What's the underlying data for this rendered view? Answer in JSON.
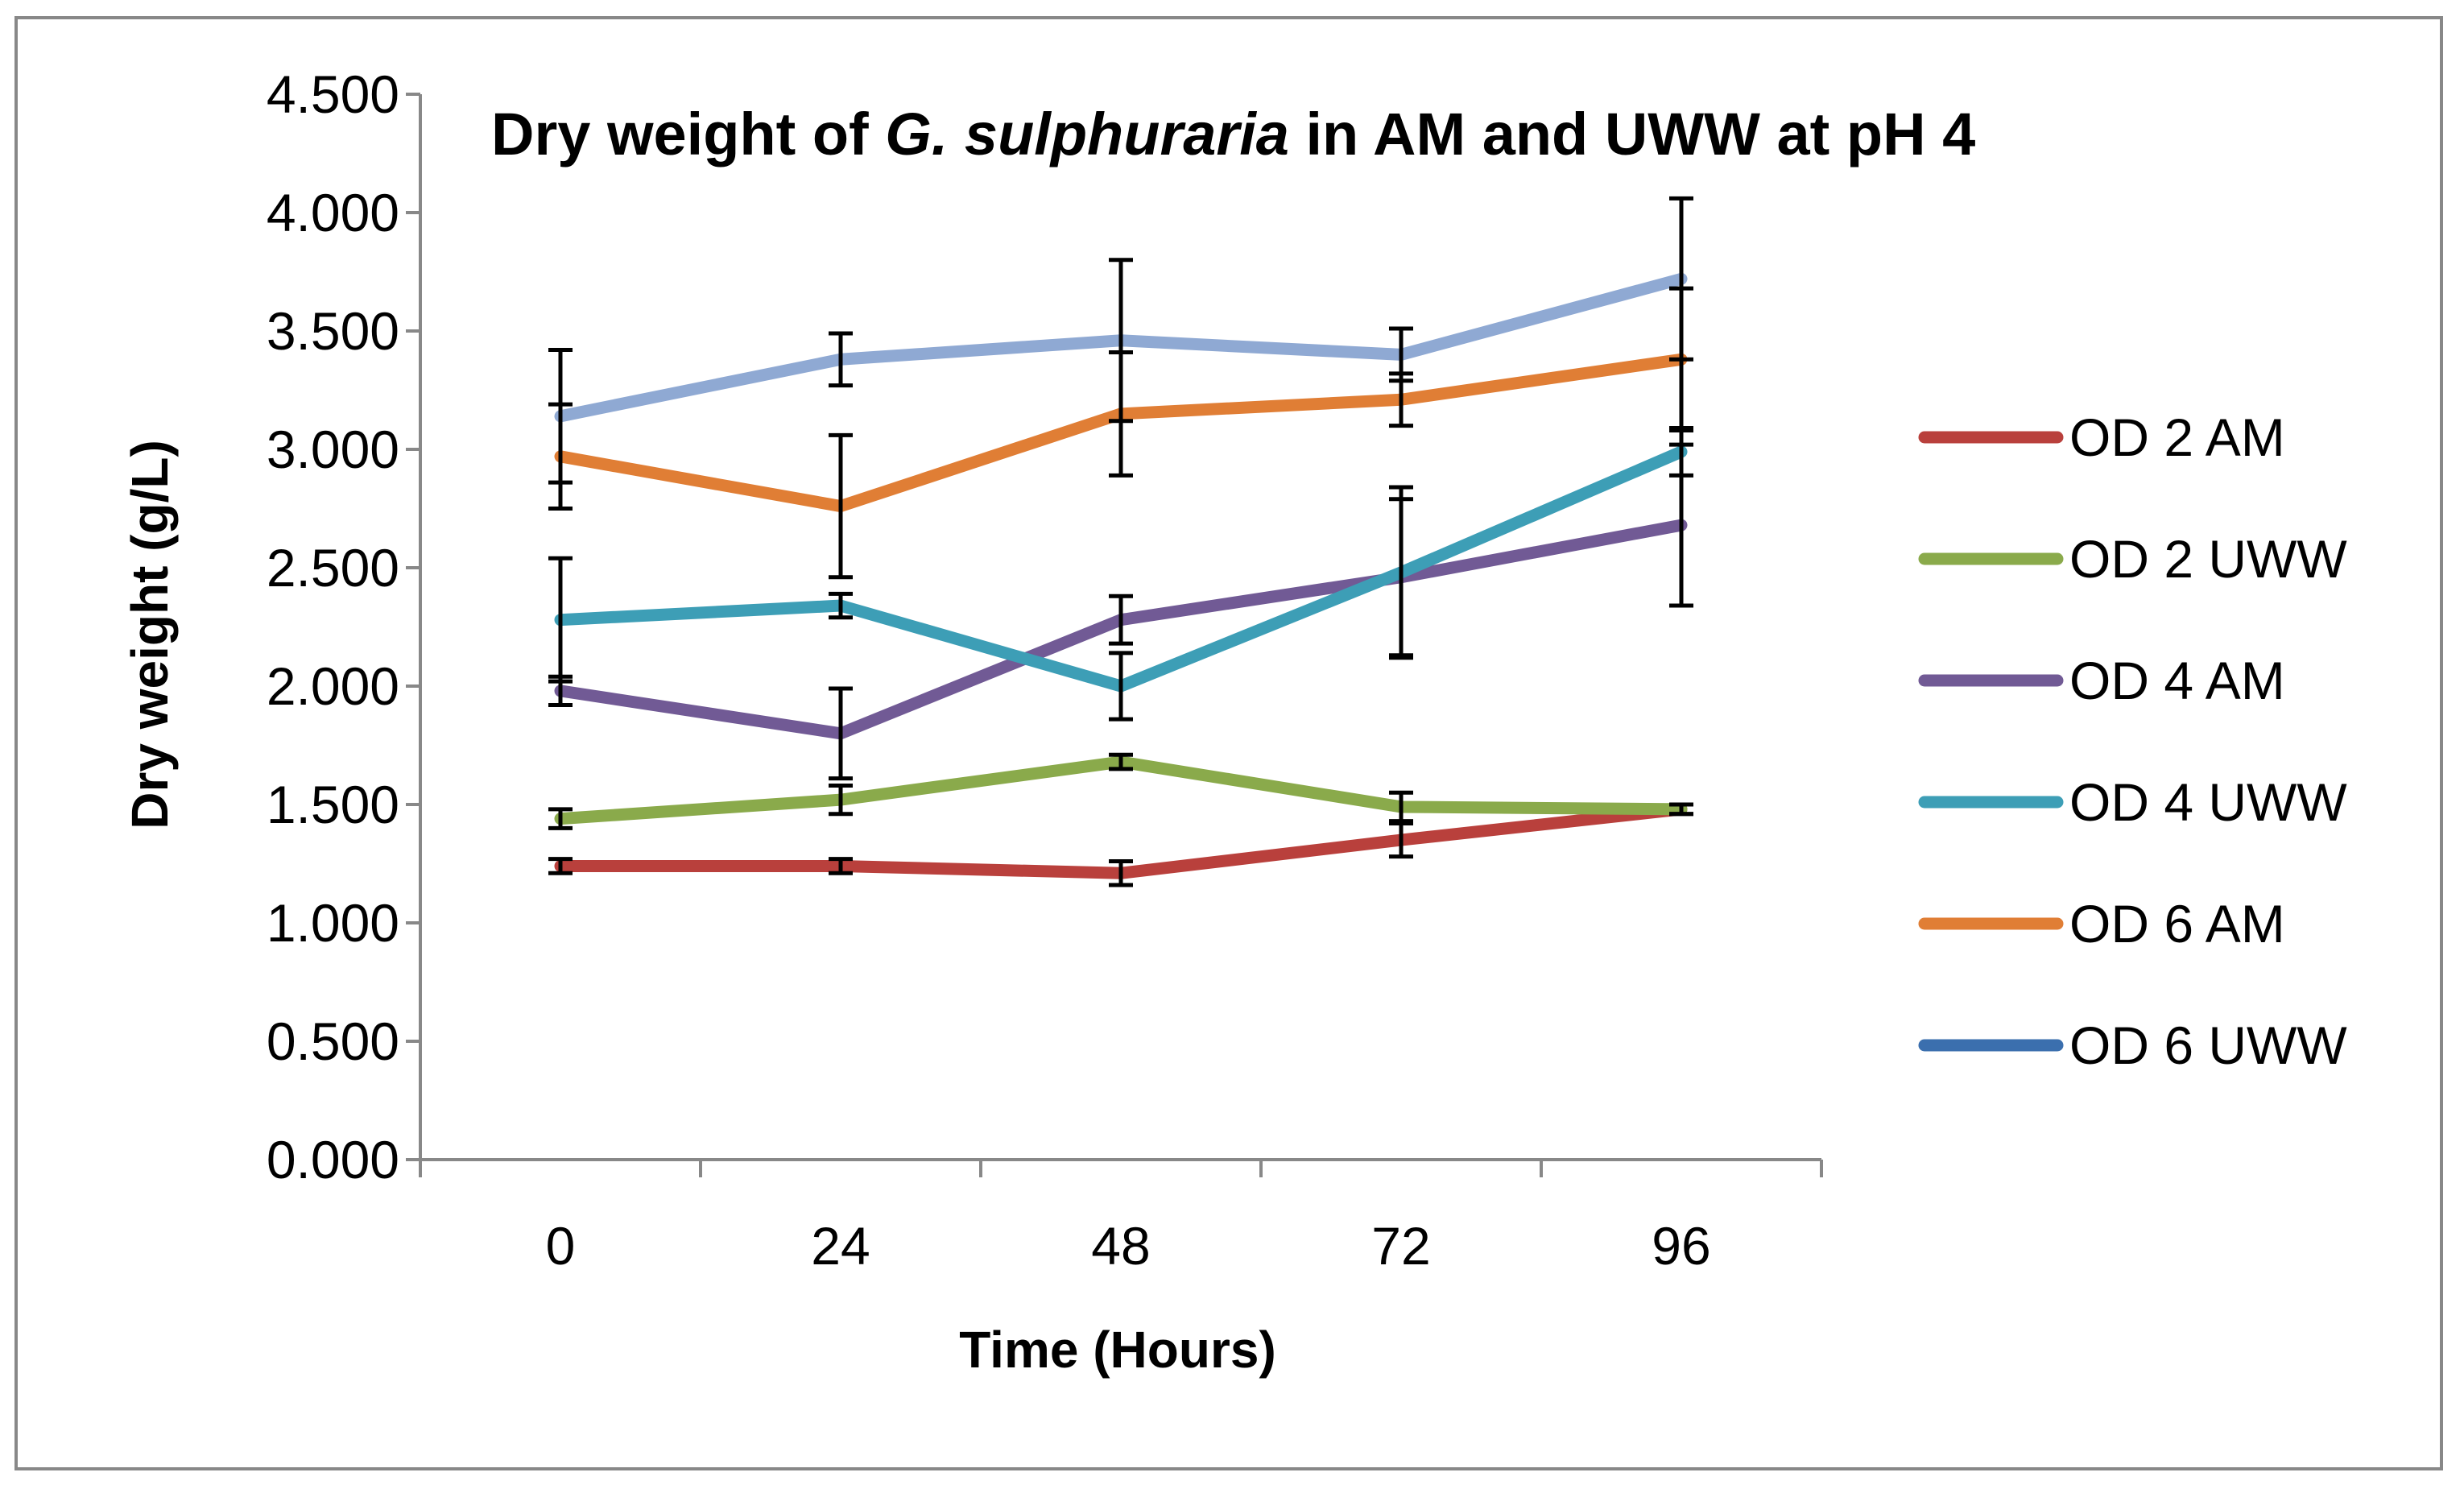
{
  "chart_data": {
    "type": "line",
    "title": {
      "prefix": "Dry weight of ",
      "italic": "G. sulphuraria",
      "suffix": " in AM and UWW at pH 4"
    },
    "xlabel": "Time (Hours)",
    "ylabel": "Dry weight (g/L)",
    "categories": [
      "0",
      "24",
      "48",
      "72",
      "96"
    ],
    "ylim": [
      0,
      4.5
    ],
    "yticks": [
      "0.000",
      "0.500",
      "1.000",
      "1.500",
      "2.000",
      "2.500",
      "3.000",
      "3.500",
      "4.000",
      "4.500"
    ],
    "grid": false,
    "legend_position": "right",
    "series": [
      {
        "name": "OD 2 AM",
        "color": "#b9403c",
        "values": [
          1.24,
          1.24,
          1.21,
          1.35,
          1.48
        ],
        "errors": [
          0.03,
          0.03,
          0.05,
          0.07,
          0.02
        ]
      },
      {
        "name": "OD 2 UWW",
        "color": "#8aaa4b",
        "values": [
          1.44,
          1.52,
          1.68,
          1.49,
          1.48
        ],
        "errors": [
          0.04,
          0.06,
          0.03,
          0.06,
          0.02
        ]
      },
      {
        "name": "OD 4 AM",
        "color": "#715a95",
        "values": [
          1.98,
          1.8,
          2.28,
          2.46,
          2.68
        ],
        "errors": [
          0.06,
          0.19,
          0.1,
          0.33,
          0.34
        ]
      },
      {
        "name": "OD 4 UWW",
        "color": "#3d9eb6",
        "values": [
          2.28,
          2.34,
          2.0,
          2.48,
          2.99
        ],
        "errors": [
          0.26,
          0.05,
          0.14,
          0.36,
          0.1
        ]
      },
      {
        "name": "OD 6 AM",
        "color": "#e07e35",
        "values": [
          2.97,
          2.76,
          3.15,
          3.21,
          3.38
        ],
        "errors": [
          0.22,
          0.3,
          0.26,
          0.11,
          0.3
        ]
      },
      {
        "name": "OD 6 UWW",
        "color": "#3b6fae",
        "values": [
          null,
          null,
          null,
          null,
          null
        ],
        "errors": [
          null,
          null,
          null,
          null,
          null
        ]
      },
      {
        "name": "",
        "color": "#8fa9d3",
        "values": [
          3.14,
          3.38,
          3.46,
          3.4,
          3.72
        ],
        "errors": [
          0.28,
          0.11,
          0.34,
          0.11,
          0.34
        ],
        "in_legend": false
      }
    ]
  }
}
